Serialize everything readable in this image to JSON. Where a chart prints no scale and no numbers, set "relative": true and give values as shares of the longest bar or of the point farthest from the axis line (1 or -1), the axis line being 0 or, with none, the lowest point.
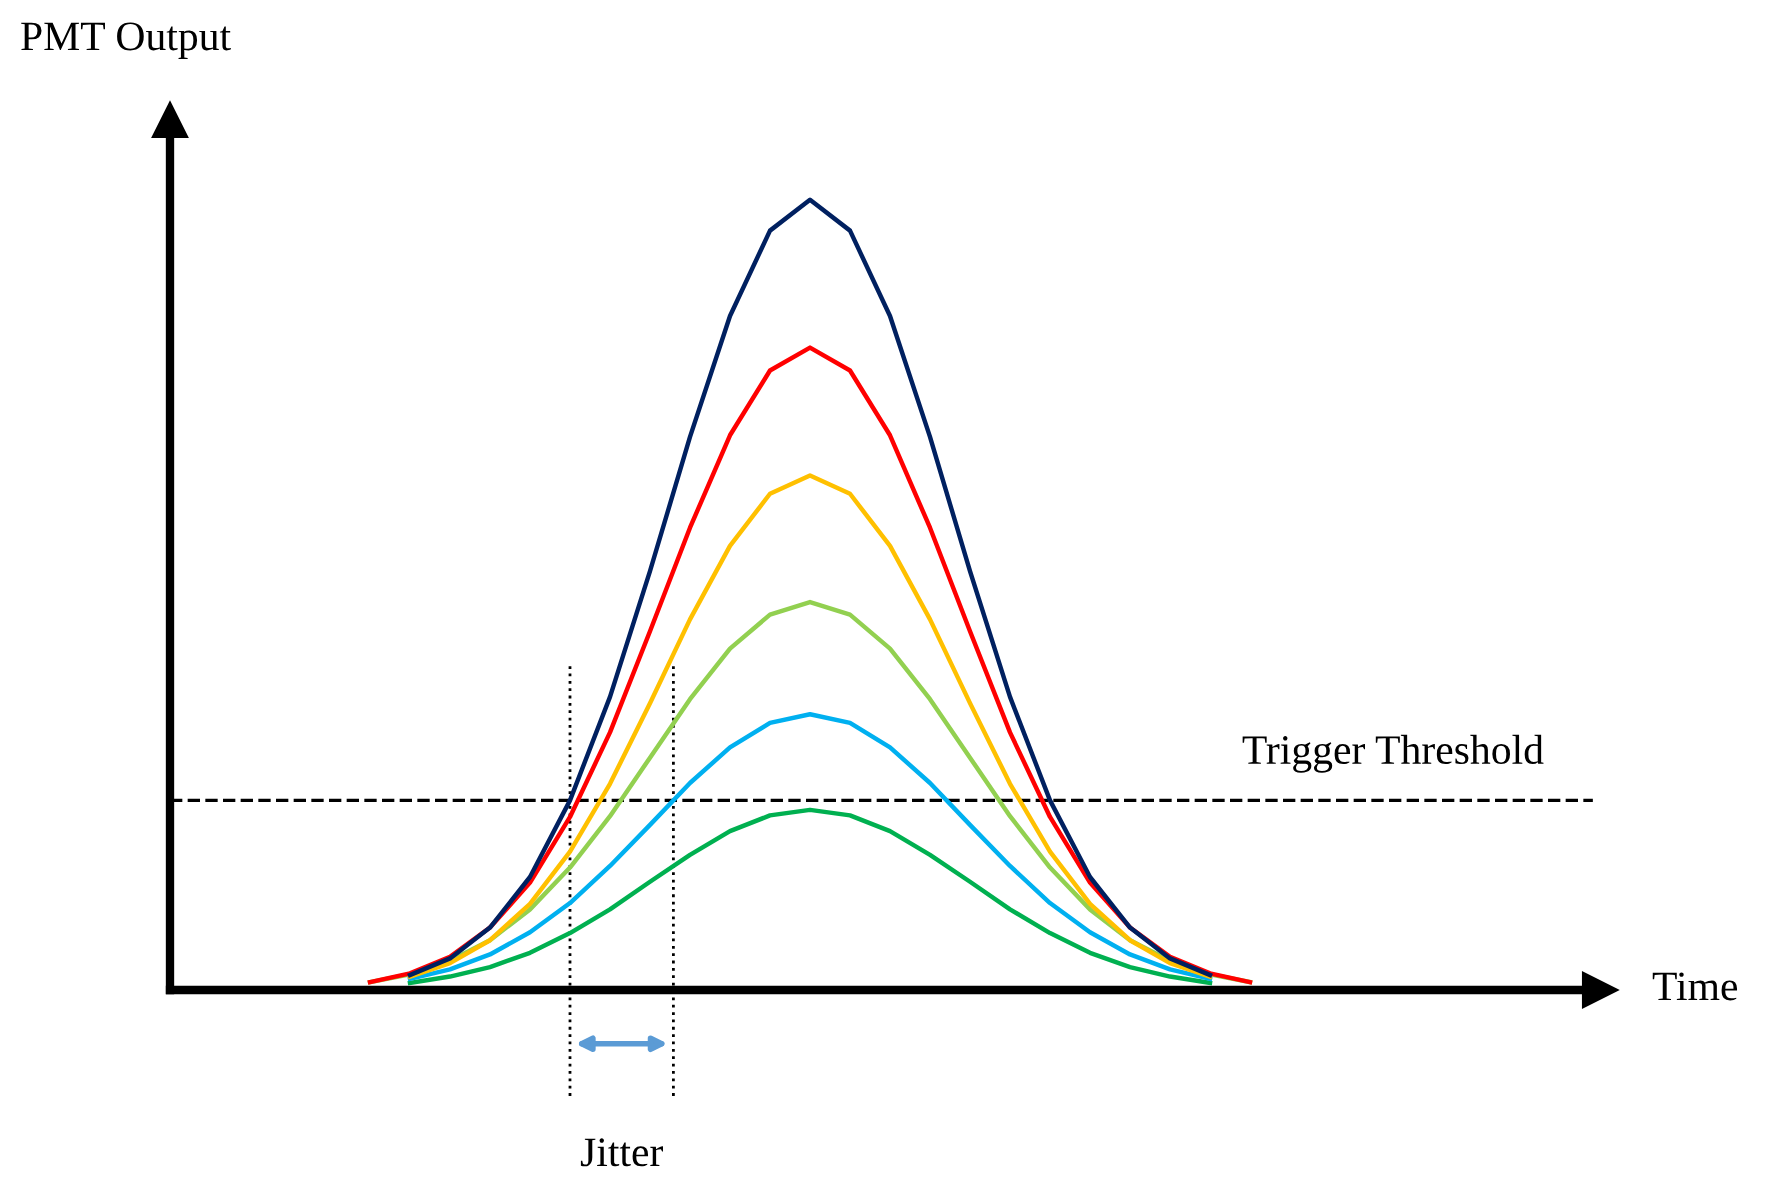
{
  "chart_data": {
    "type": "line",
    "relative": true,
    "ylabel": "PMT Output",
    "marker": "none",
    "line_style": "solid",
    "categories": [
      null,
      null,
      null,
      null,
      null,
      null,
      null,
      null,
      null,
      null,
      null,
      null,
      null,
      null,
      null,
      null,
      null,
      null,
      null,
      null,
      null,
      null,
      null,
      null,
      null,
      null,
      null
    ],
    "series": [
      {
        "color": "#002060",
        "values": [
          null,
          null,
          null,
          null,
          0.019,
          0.04,
          0.079,
          0.143,
          0.24,
          0.371,
          0.53,
          0.7,
          0.853,
          0.961,
          1,
          0.961,
          0.853,
          0.7,
          0.53,
          0.371,
          0.24,
          0.143,
          0.079,
          0.04,
          0.019,
          null,
          null
        ]
      },
      {
        "color": "#ff0000",
        "values": [
          null,
          null,
          null,
          0.01,
          0.021,
          0.042,
          0.079,
          0.136,
          0.219,
          0.326,
          0.454,
          0.585,
          0.702,
          0.784,
          0.813,
          0.784,
          0.702,
          0.585,
          0.454,
          0.326,
          0.219,
          0.136,
          0.079,
          0.042,
          0.021,
          0.01,
          null
        ]
      },
      {
        "color": "#ffc000",
        "values": [
          null,
          null,
          null,
          null,
          0.017,
          0.034,
          0.063,
          0.109,
          0.175,
          0.261,
          0.363,
          0.469,
          0.562,
          0.628,
          0.651,
          0.628,
          0.562,
          0.469,
          0.363,
          0.261,
          0.175,
          0.109,
          0.063,
          0.034,
          0.017,
          null,
          null
        ]
      },
      {
        "color": "#92d050",
        "values": [
          null,
          null,
          null,
          0.01,
          0.02,
          0.037,
          0.063,
          0.102,
          0.155,
          0.22,
          0.294,
          0.368,
          0.432,
          0.475,
          0.491,
          0.475,
          0.432,
          0.368,
          0.294,
          0.22,
          0.155,
          0.102,
          0.063,
          0.037,
          0.02,
          0.01,
          null
        ]
      },
      {
        "color": "#00b0f0",
        "values": [
          null,
          null,
          null,
          null,
          0.014,
          0.026,
          0.045,
          0.073,
          0.11,
          0.157,
          0.209,
          0.262,
          0.307,
          0.338,
          0.349,
          0.338,
          0.307,
          0.262,
          0.209,
          0.157,
          0.11,
          0.073,
          0.045,
          0.026,
          0.014,
          null,
          null
        ]
      },
      {
        "color": "#00b050",
        "values": [
          null,
          null,
          null,
          null,
          0.009,
          0.017,
          0.029,
          0.047,
          0.072,
          0.102,
          0.137,
          0.171,
          0.201,
          0.221,
          0.228,
          0.221,
          0.201,
          0.171,
          0.137,
          0.102,
          0.072,
          0.047,
          0.029,
          0.017,
          0.009,
          null,
          null
        ]
      }
    ],
    "ref_lines": [
      {
        "axis": "y",
        "value": 0.24,
        "label": "Trigger Threshold",
        "color": "#000000",
        "line_style": "dashed"
      }
    ],
    "annotations": [
      "Jitter",
      "Time"
    ]
  }
}
